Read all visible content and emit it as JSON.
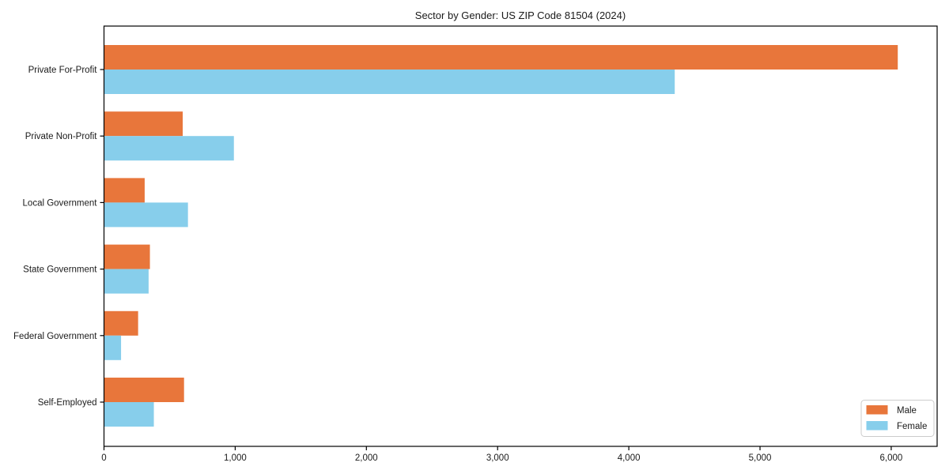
{
  "chart_data": {
    "type": "bar",
    "orientation": "horizontal",
    "title": "Sector by Gender: US ZIP Code 81504 (2024)",
    "categories": [
      "Private For-Profit",
      "Private Non-Profit",
      "Local Government",
      "State Government",
      "Federal Government",
      "Self-Employed"
    ],
    "series": [
      {
        "name": "Male",
        "color": "#E8763B",
        "values": [
          6050,
          600,
          310,
          350,
          260,
          610
        ]
      },
      {
        "name": "Female",
        "color": "#87CEEB",
        "values": [
          4350,
          990,
          640,
          340,
          130,
          380
        ]
      }
    ],
    "xlabel": "",
    "ylabel": "",
    "xlim": [
      0,
      6350
    ],
    "xticks": [
      0,
      1000,
      2000,
      3000,
      4000,
      5000,
      6000
    ],
    "xtick_labels": [
      "0",
      "1,000",
      "2,000",
      "3,000",
      "4,000",
      "5,000",
      "6,000"
    ],
    "grid": false,
    "legend_position": "lower right",
    "background_color": "#ffffff",
    "axis_color": "#000000",
    "legend_border_color": "#cccccc"
  }
}
